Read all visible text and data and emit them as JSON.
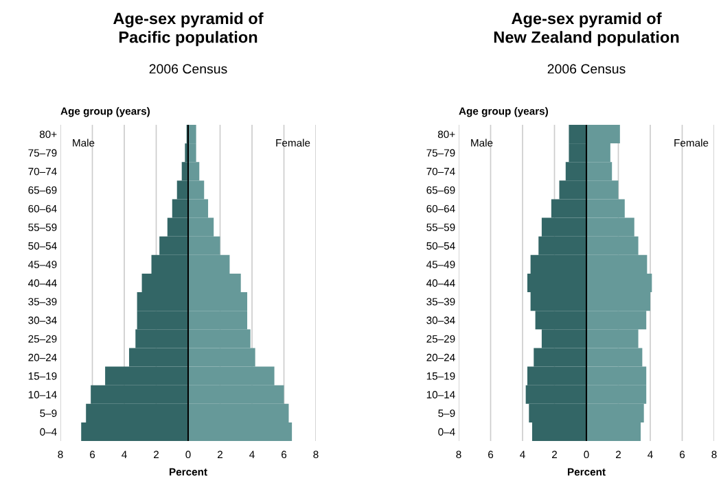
{
  "chart_data": [
    {
      "type": "bar",
      "orientation": "horizontal",
      "title": "Age-sex pyramid of\nPacific population",
      "subtitle": "2006 Census",
      "ylabel": "Age group (years)",
      "xlabel": "Percent",
      "categories": [
        "80+",
        "75–79",
        "70–74",
        "65–69",
        "60–64",
        "55–59",
        "50–54",
        "45–49",
        "40–44",
        "35–39",
        "30–34",
        "25–29",
        "20–24",
        "15–19",
        "10–14",
        "5–9",
        "0–4"
      ],
      "annotations": [
        "Male",
        "Female"
      ],
      "stacked": true,
      "series": [
        {
          "color": "#336666",
          "values": [
            -0.1,
            -0.2,
            -0.4,
            -0.7,
            -1.0,
            -1.3,
            -1.8,
            -2.3,
            -2.9,
            -3.2,
            -3.2,
            -3.3,
            -3.7,
            -5.2,
            -6.1,
            -6.4,
            -6.7
          ]
        },
        {
          "color": "#669999",
          "values": [
            0.5,
            0.5,
            0.7,
            1.0,
            1.25,
            1.6,
            2.0,
            2.6,
            3.3,
            3.7,
            3.7,
            3.9,
            4.2,
            5.4,
            6.0,
            6.3,
            6.5
          ]
        }
      ],
      "xlim": [
        -8,
        8
      ],
      "xticks": [
        {
          "value": -8,
          "label": "8"
        },
        {
          "value": -6,
          "label": "6"
        },
        {
          "value": -4,
          "label": "4"
        },
        {
          "value": -2,
          "label": "2"
        },
        0,
        2,
        4,
        6,
        8
      ],
      "ref_lines": [
        {
          "axis": "x",
          "value": 0,
          "color": "#000000"
        }
      ],
      "grid": "x",
      "legend": false
    },
    {
      "type": "bar",
      "orientation": "horizontal",
      "title": "Age-sex pyramid of\nNew Zealand population",
      "subtitle": "2006 Census",
      "ylabel": "Age group (years)",
      "xlabel": "Percent",
      "categories": [
        "80+",
        "75–79",
        "70–74",
        "65–69",
        "60–64",
        "55–59",
        "50–54",
        "45–49",
        "40–44",
        "35–39",
        "30–34",
        "25–29",
        "20–24",
        "15–19",
        "10–14",
        "5–9",
        "0–4"
      ],
      "annotations": [
        "Male",
        "Female"
      ],
      "stacked": true,
      "series": [
        {
          "color": "#336666",
          "values": [
            -1.1,
            -1.1,
            -1.3,
            -1.7,
            -2.2,
            -2.8,
            -3.0,
            -3.5,
            -3.7,
            -3.5,
            -3.2,
            -2.8,
            -3.3,
            -3.7,
            -3.8,
            -3.6,
            -3.4
          ]
        },
        {
          "color": "#669999",
          "values": [
            2.1,
            1.5,
            1.6,
            2.0,
            2.4,
            3.0,
            3.25,
            3.8,
            4.1,
            4.0,
            3.75,
            3.25,
            3.5,
            3.75,
            3.75,
            3.6,
            3.4
          ]
        }
      ],
      "xlim": [
        -8,
        8
      ],
      "xticks": [
        {
          "value": -8,
          "label": "8"
        },
        {
          "value": -6,
          "label": "6"
        },
        {
          "value": -4,
          "label": "4"
        },
        {
          "value": -2,
          "label": "2"
        },
        0,
        2,
        4,
        6,
        8
      ],
      "ref_lines": [
        {
          "axis": "x",
          "value": 0,
          "color": "#000000"
        }
      ],
      "grid": "x",
      "legend": false
    }
  ]
}
